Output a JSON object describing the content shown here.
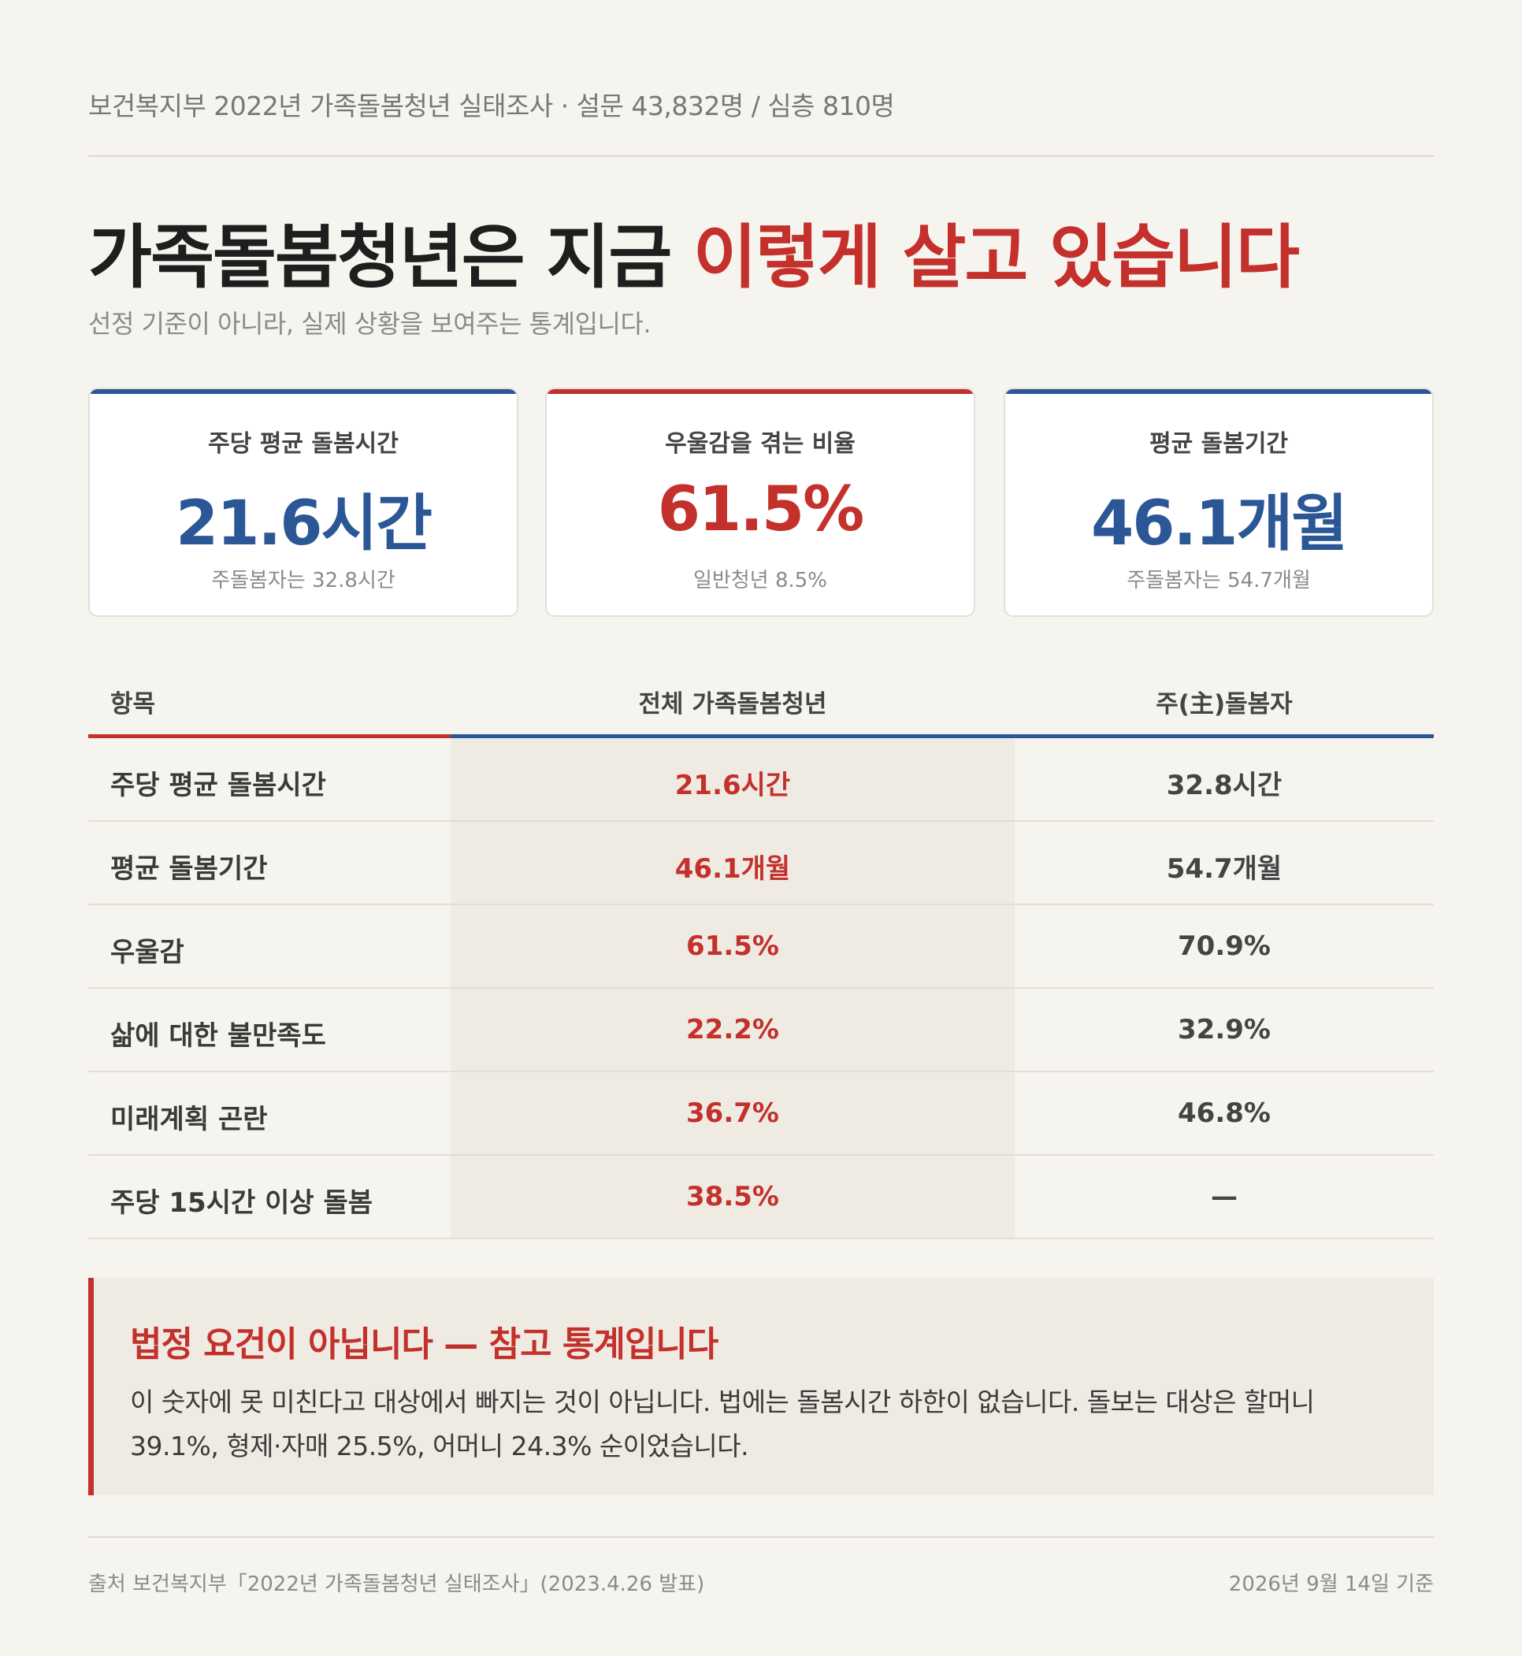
{
  "header": {
    "source_line": "보건복지부 2022년 가족돌봄청년 실태조사 · 설문 43,832명 / 심층 810명",
    "title_main": "가족돌봄청년은 지금 ",
    "title_accent": "이렇게 살고 있습니다",
    "subtitle": "선정 기준이 아니라, 실제 상황을 보여주는 통계입니다."
  },
  "cards": [
    {
      "label": "주당 평균 돌봄시간",
      "value": "21.6시간",
      "note": "주돌봄자는 32.8시간",
      "accent": "#2b5797"
    },
    {
      "label": "우울감을 겪는 비율",
      "value": "61.5%",
      "note": "일반청년 8.5%",
      "accent": "#c4302b"
    },
    {
      "label": "평균 돌봄기간",
      "value": "46.1개월",
      "note": "주돌봄자는 54.7개월",
      "accent": "#2b5797"
    }
  ],
  "table": {
    "headers": [
      "항목",
      "전체 가족돌봄청년",
      "주(主)돌봄자"
    ],
    "rows": [
      {
        "item": "주당 평균 돌봄시간",
        "all": "21.6시간",
        "main": "32.8시간"
      },
      {
        "item": "평균 돌봄기간",
        "all": "46.1개월",
        "main": "54.7개월"
      },
      {
        "item": "우울감",
        "all": "61.5%",
        "main": "70.9%"
      },
      {
        "item": "삶에 대한 불만족도",
        "all": "22.2%",
        "main": "32.9%"
      },
      {
        "item": "미래계획 곤란",
        "all": "36.7%",
        "main": "46.8%"
      },
      {
        "item": "주당 15시간 이상 돌봄",
        "all": "38.5%",
        "main": "—"
      }
    ]
  },
  "callout": {
    "title": "법정 요건이 아닙니다 — 참고 통계입니다",
    "body": "이 숫자에 못 미친다고 대상에서 빠지는 것이 아닙니다. 법에는 돌봄시간 하한이 없습니다. 돌보는 대상은 할머니 39.1%, 형제·자매 25.5%, 어머니 24.3% 순이었습니다."
  },
  "footer": {
    "source": "출처 보건복지부「2022년 가족돌봄청년 실태조사」(2023.4.26 발표)",
    "date": "2026년 9월 14일 기준"
  },
  "colors": {
    "red": "#c4302b",
    "blue": "#2b5797",
    "background": "#f6f4ef"
  }
}
